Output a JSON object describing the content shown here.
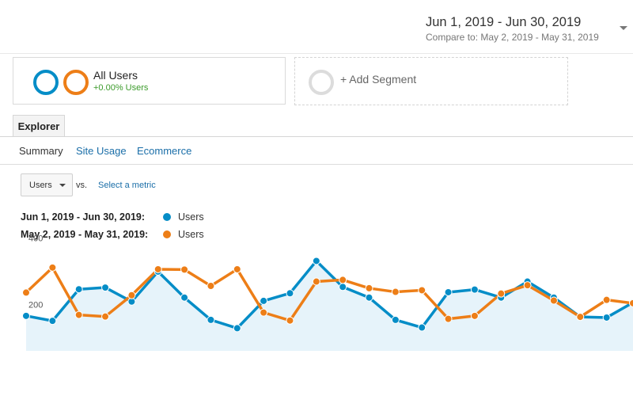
{
  "date_range": {
    "primary": "Jun 1, 2019 - Jun 30, 2019",
    "compare_label": "Compare to:",
    "compare": "May 2, 2019 - May 31, 2019",
    "dropdown_icon": "caret-down-icon"
  },
  "segments": {
    "active": {
      "name": "All Users",
      "sub": "+0.00% Users",
      "colors": [
        "#058dc7",
        "#ed7e17"
      ]
    },
    "add_label": "+ Add Segment"
  },
  "tabs": {
    "explorer": "Explorer",
    "subnav": [
      "Summary",
      "Site Usage",
      "Ecommerce"
    ]
  },
  "metric": {
    "selected": "Users",
    "vs": "vs.",
    "select_label": "Select a metric"
  },
  "legend": [
    {
      "range": "Jun 1, 2019 - Jun 30, 2019:",
      "series": "Users",
      "color": "#058dc7"
    },
    {
      "range": "May 2, 2019 - May 31, 2019:",
      "series": "Users",
      "color": "#ed7e17"
    }
  ],
  "chart_data": {
    "type": "line",
    "ylim": [
      80,
      420
    ],
    "y_ticks": [
      200,
      400
    ],
    "grid": false,
    "series": [
      {
        "name": "Users",
        "period": "Jun 1, 2019 - Jun 30, 2019",
        "color": "#058dc7",
        "filled": true,
        "values": [
          185,
          170,
          265,
          270,
          228,
          318,
          240,
          173,
          148,
          230,
          253,
          350,
          272,
          240,
          173,
          150,
          256,
          264,
          240,
          288,
          240,
          182,
          180,
          225
        ]
      },
      {
        "name": "Users",
        "period": "May 2, 2019 - May 31, 2019",
        "color": "#ed7e17",
        "filled": false,
        "values": [
          255,
          330,
          188,
          183,
          247,
          325,
          324,
          275,
          325,
          195,
          171,
          288,
          293,
          268,
          257,
          262,
          176,
          185,
          252,
          277,
          231,
          182,
          233,
          223
        ]
      }
    ]
  }
}
